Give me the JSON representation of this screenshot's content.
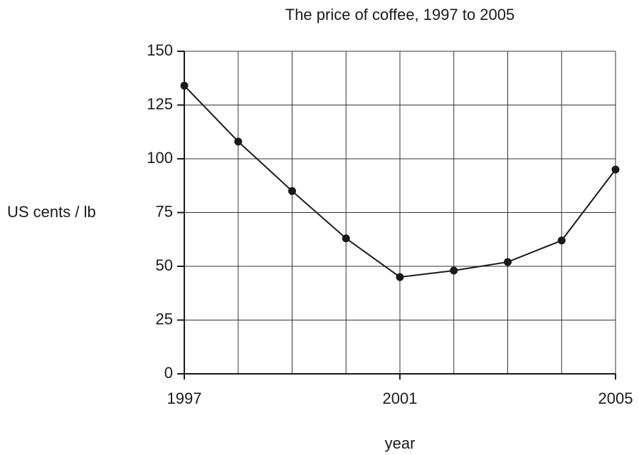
{
  "chart_data": {
    "type": "line",
    "title": "The price of coffee, 1997 to 2005",
    "x_label": "year",
    "y_label": "US cents / lb",
    "x": [
      1997,
      1998,
      1999,
      2000,
      2001,
      2002,
      2003,
      2004,
      2005
    ],
    "series": [
      {
        "color": "#1a1a1a",
        "values": [
          134,
          108,
          85,
          63,
          45,
          48,
          52,
          62,
          95
        ]
      }
    ],
    "xlim": [
      1997,
      2005
    ],
    "xticks": [
      1997,
      2001,
      2005
    ],
    "ylim": [
      0,
      150
    ],
    "yticks": [
      0,
      25,
      50,
      75,
      100,
      125,
      150
    ],
    "grid": true
  }
}
